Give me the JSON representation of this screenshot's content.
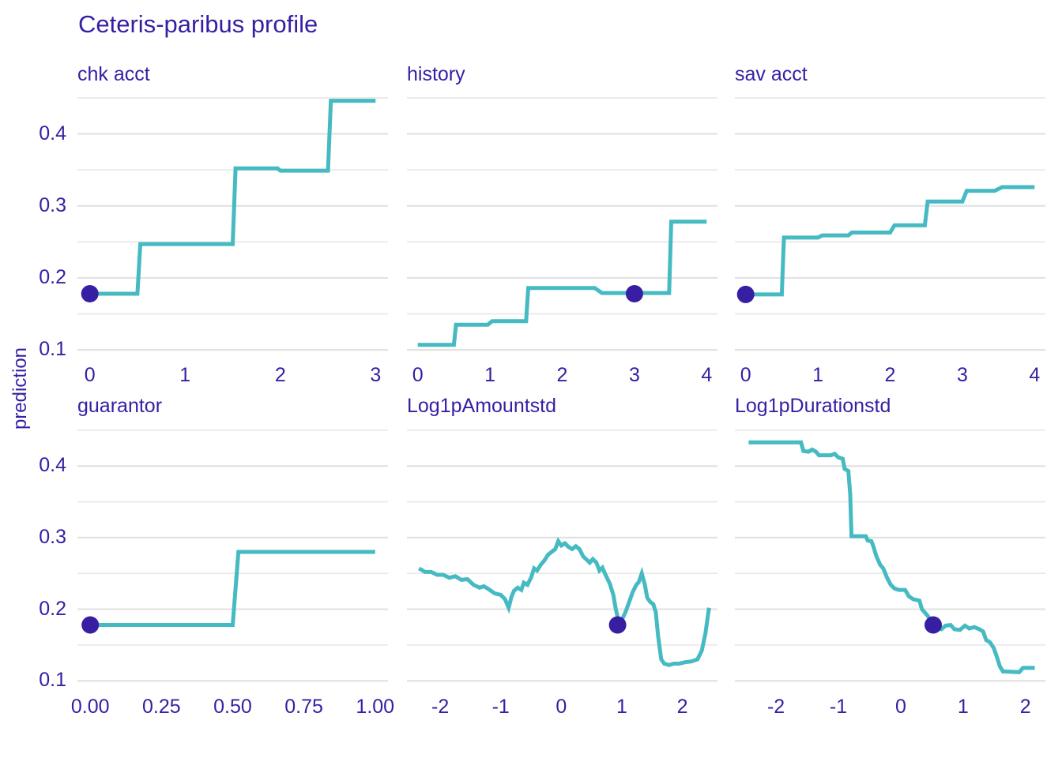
{
  "title": "Ceteris-paribus profile",
  "colors": {
    "text": "#371ea3",
    "line": "#46bac2",
    "point": "#371ea3",
    "grid_major": "#e2e2e2",
    "grid_minor": "#e7e7e7",
    "background": "#ffffff"
  },
  "chart_data": {
    "type": "line",
    "title": "Ceteris-paribus profile",
    "xlabel": "",
    "ylabel": "prediction",
    "ylim": [
      0.087,
      0.462
    ],
    "y_tick_values": [
      0.4,
      0.3,
      0.2,
      0.1
    ],
    "y_tick_labels": [
      "0.4",
      "0.3",
      "0.2",
      "0.1"
    ],
    "y_major_gridlines": [
      0.1,
      0.2,
      0.3,
      0.4
    ],
    "y_minor_gridlines": [
      0.15,
      0.25,
      0.35,
      0.45
    ],
    "grid": "horizontal-only",
    "legend_position": "none",
    "panels": [
      {
        "name": "chk acct",
        "xlim": [
          -0.13,
          3.13
        ],
        "x_tick_values": [
          0,
          1,
          2,
          3
        ],
        "x_tick_labels": [
          "0",
          "1",
          "2",
          "3"
        ],
        "point": [
          0,
          0.178
        ],
        "line": [
          [
            0,
            0.178
          ],
          [
            0.5,
            0.178
          ],
          [
            0.53,
            0.247
          ],
          [
            1.5,
            0.247
          ],
          [
            1.53,
            0.352
          ],
          [
            1.97,
            0.352
          ],
          [
            2.0,
            0.349
          ],
          [
            2.5,
            0.349
          ],
          [
            2.53,
            0.446
          ],
          [
            3,
            0.446
          ]
        ]
      },
      {
        "name": "history",
        "xlim": [
          -0.15,
          4.15
        ],
        "x_tick_values": [
          0,
          1,
          2,
          3,
          4
        ],
        "x_tick_labels": [
          "0",
          "1",
          "2",
          "3",
          "4"
        ],
        "point": [
          3,
          0.178
        ],
        "line": [
          [
            0,
            0.107
          ],
          [
            0.5,
            0.107
          ],
          [
            0.53,
            0.135
          ],
          [
            0.97,
            0.135
          ],
          [
            1.03,
            0.14
          ],
          [
            1.5,
            0.14
          ],
          [
            1.53,
            0.186
          ],
          [
            2.45,
            0.186
          ],
          [
            2.55,
            0.179
          ],
          [
            3.48,
            0.179
          ],
          [
            3.51,
            0.278
          ],
          [
            4,
            0.278
          ]
        ]
      },
      {
        "name": "sav acct",
        "xlim": [
          -0.15,
          4.15
        ],
        "x_tick_values": [
          0,
          1,
          2,
          3,
          4
        ],
        "x_tick_labels": [
          "0",
          "1",
          "2",
          "3",
          "4"
        ],
        "point": [
          0,
          0.177
        ],
        "line": [
          [
            0,
            0.177
          ],
          [
            0.5,
            0.177
          ],
          [
            0.53,
            0.256
          ],
          [
            1.0,
            0.256
          ],
          [
            1.06,
            0.259
          ],
          [
            1.42,
            0.259
          ],
          [
            1.47,
            0.263
          ],
          [
            2.0,
            0.263
          ],
          [
            2.06,
            0.273
          ],
          [
            2.48,
            0.273
          ],
          [
            2.52,
            0.306
          ],
          [
            3.0,
            0.306
          ],
          [
            3.06,
            0.321
          ],
          [
            3.45,
            0.321
          ],
          [
            3.55,
            0.326
          ],
          [
            4,
            0.326
          ]
        ]
      },
      {
        "name": "guarantor",
        "xlim": [
          -0.045,
          1.045
        ],
        "x_tick_values": [
          0,
          0.25,
          0.5,
          0.75,
          1.0
        ],
        "x_tick_labels": [
          "0.00",
          "0.25",
          "0.50",
          "0.75",
          "1.00"
        ],
        "point": [
          0,
          0.178
        ],
        "line": [
          [
            0,
            0.178
          ],
          [
            0.5,
            0.178
          ],
          [
            0.52,
            0.28
          ],
          [
            1,
            0.28
          ]
        ]
      },
      {
        "name": "Log1pAmountstd",
        "xlim": [
          -2.55,
          2.58
        ],
        "x_tick_values": [
          -2,
          -1,
          0,
          1,
          2
        ],
        "x_tick_labels": [
          "-2",
          "-1",
          "0",
          "1",
          "2"
        ],
        "point": [
          0.93,
          0.178
        ],
        "line": [
          [
            -2.35,
            0.257
          ],
          [
            -2.25,
            0.252
          ],
          [
            -2.15,
            0.252
          ],
          [
            -2.05,
            0.248
          ],
          [
            -1.95,
            0.248
          ],
          [
            -1.85,
            0.244
          ],
          [
            -1.75,
            0.246
          ],
          [
            -1.65,
            0.241
          ],
          [
            -1.55,
            0.242
          ],
          [
            -1.45,
            0.234
          ],
          [
            -1.35,
            0.23
          ],
          [
            -1.28,
            0.232
          ],
          [
            -1.2,
            0.228
          ],
          [
            -1.1,
            0.222
          ],
          [
            -1.0,
            0.22
          ],
          [
            -0.93,
            0.214
          ],
          [
            -0.87,
            0.202
          ],
          [
            -0.82,
            0.218
          ],
          [
            -0.78,
            0.226
          ],
          [
            -0.72,
            0.23
          ],
          [
            -0.66,
            0.227
          ],
          [
            -0.62,
            0.237
          ],
          [
            -0.56,
            0.234
          ],
          [
            -0.5,
            0.244
          ],
          [
            -0.45,
            0.257
          ],
          [
            -0.4,
            0.254
          ],
          [
            -0.34,
            0.262
          ],
          [
            -0.28,
            0.268
          ],
          [
            -0.22,
            0.276
          ],
          [
            -0.16,
            0.28
          ],
          [
            -0.1,
            0.284
          ],
          [
            -0.05,
            0.295
          ],
          [
            0.0,
            0.289
          ],
          [
            0.06,
            0.292
          ],
          [
            0.12,
            0.287
          ],
          [
            0.18,
            0.284
          ],
          [
            0.24,
            0.288
          ],
          [
            0.3,
            0.284
          ],
          [
            0.36,
            0.274
          ],
          [
            0.42,
            0.269
          ],
          [
            0.47,
            0.265
          ],
          [
            0.52,
            0.27
          ],
          [
            0.58,
            0.265
          ],
          [
            0.63,
            0.254
          ],
          [
            0.68,
            0.258
          ],
          [
            0.73,
            0.248
          ],
          [
            0.8,
            0.236
          ],
          [
            0.86,
            0.22
          ],
          [
            0.9,
            0.2
          ],
          [
            0.95,
            0.182
          ],
          [
            1.0,
            0.185
          ],
          [
            1.06,
            0.196
          ],
          [
            1.12,
            0.21
          ],
          [
            1.18,
            0.224
          ],
          [
            1.24,
            0.234
          ],
          [
            1.28,
            0.238
          ],
          [
            1.33,
            0.25
          ],
          [
            1.38,
            0.234
          ],
          [
            1.42,
            0.216
          ],
          [
            1.47,
            0.21
          ],
          [
            1.52,
            0.207
          ],
          [
            1.56,
            0.196
          ],
          [
            1.6,
            0.162
          ],
          [
            1.65,
            0.13
          ],
          [
            1.7,
            0.124
          ],
          [
            1.78,
            0.122
          ],
          [
            1.86,
            0.124
          ],
          [
            1.95,
            0.124
          ],
          [
            2.05,
            0.126
          ],
          [
            2.15,
            0.127
          ],
          [
            2.25,
            0.13
          ],
          [
            2.32,
            0.142
          ],
          [
            2.38,
            0.166
          ],
          [
            2.44,
            0.202
          ]
        ]
      },
      {
        "name": "Log1pDurationstd",
        "xlim": [
          -2.66,
          2.32
        ],
        "x_tick_values": [
          -2,
          -1,
          0,
          1,
          2
        ],
        "x_tick_labels": [
          "-2",
          "-1",
          "0",
          "1",
          "2"
        ],
        "point": [
          0.52,
          0.178
        ],
        "line": [
          [
            -2.44,
            0.433
          ],
          [
            -1.6,
            0.433
          ],
          [
            -1.56,
            0.421
          ],
          [
            -1.48,
            0.42
          ],
          [
            -1.42,
            0.423
          ],
          [
            -1.36,
            0.42
          ],
          [
            -1.31,
            0.415
          ],
          [
            -1.12,
            0.415
          ],
          [
            -1.06,
            0.417
          ],
          [
            -1.0,
            0.412
          ],
          [
            -0.93,
            0.41
          ],
          [
            -0.9,
            0.396
          ],
          [
            -0.84,
            0.393
          ],
          [
            -0.81,
            0.36
          ],
          [
            -0.79,
            0.302
          ],
          [
            -0.56,
            0.302
          ],
          [
            -0.53,
            0.296
          ],
          [
            -0.47,
            0.295
          ],
          [
            -0.44,
            0.288
          ],
          [
            -0.39,
            0.274
          ],
          [
            -0.33,
            0.262
          ],
          [
            -0.28,
            0.257
          ],
          [
            -0.22,
            0.244
          ],
          [
            -0.16,
            0.234
          ],
          [
            -0.1,
            0.229
          ],
          [
            -0.03,
            0.227
          ],
          [
            0.07,
            0.227
          ],
          [
            0.13,
            0.218
          ],
          [
            0.2,
            0.214
          ],
          [
            0.3,
            0.212
          ],
          [
            0.34,
            0.2
          ],
          [
            0.42,
            0.192
          ],
          [
            0.47,
            0.186
          ],
          [
            0.52,
            0.178
          ],
          [
            0.58,
            0.174
          ],
          [
            0.65,
            0.172
          ],
          [
            0.72,
            0.177
          ],
          [
            0.8,
            0.178
          ],
          [
            0.86,
            0.172
          ],
          [
            0.95,
            0.171
          ],
          [
            1.03,
            0.177
          ],
          [
            1.1,
            0.173
          ],
          [
            1.18,
            0.175
          ],
          [
            1.26,
            0.172
          ],
          [
            1.32,
            0.169
          ],
          [
            1.37,
            0.157
          ],
          [
            1.43,
            0.154
          ],
          [
            1.49,
            0.146
          ],
          [
            1.54,
            0.134
          ],
          [
            1.59,
            0.12
          ],
          [
            1.64,
            0.113
          ],
          [
            1.9,
            0.112
          ],
          [
            1.96,
            0.118
          ],
          [
            2.15,
            0.118
          ]
        ]
      }
    ]
  }
}
